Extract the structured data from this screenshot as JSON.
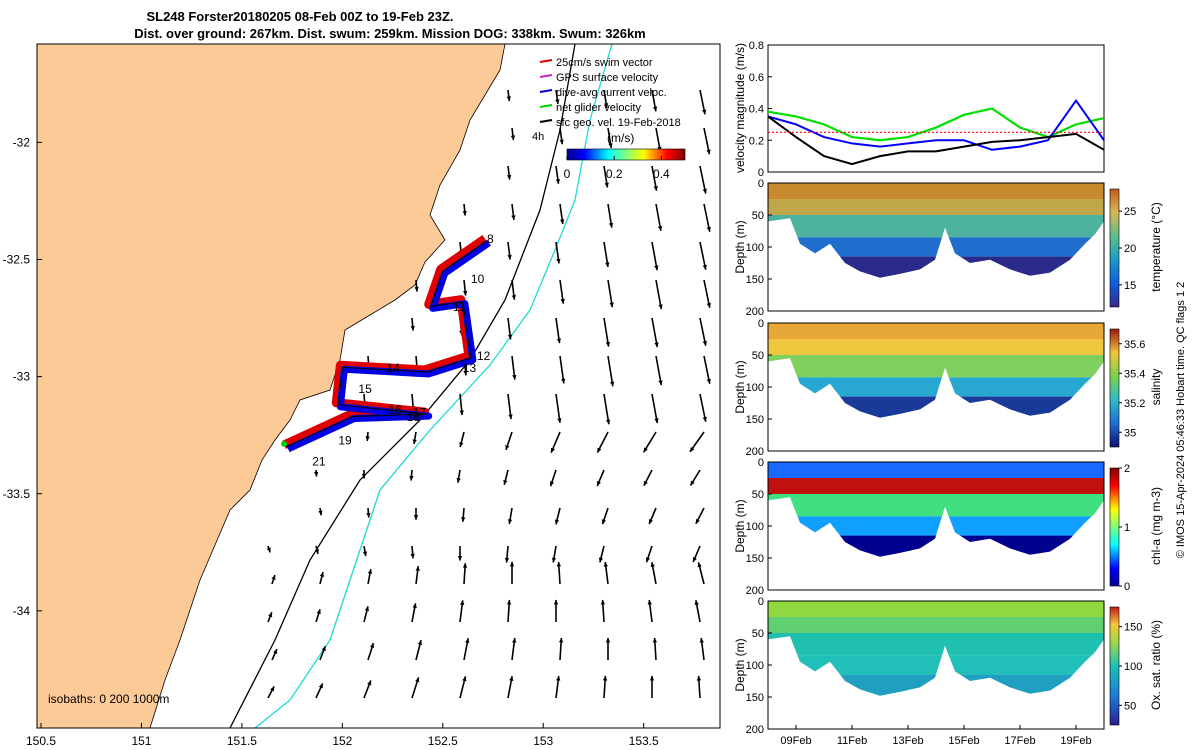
{
  "chart_data": [
    {
      "type": "scatter",
      "panel": "map",
      "title_line1": "SL248 Forster20180205 08-Feb 00Z to 19-Feb 23Z.",
      "title_line2": "Dist. over ground: 267km. Dist. swum: 259km. Mission DOG: 338km. Swum: 326km",
      "x_ticks": [
        "150.5",
        "151",
        "151.5",
        "152",
        "152.5",
        "153",
        "153.5"
      ],
      "x_tick_values": [
        150.5,
        151,
        151.5,
        152,
        152.5,
        153,
        153.5
      ],
      "y_ticks": [
        "-32",
        "-32.5",
        "-33",
        "-33.5",
        "-34"
      ],
      "y_tick_values": [
        -32,
        -32.5,
        -33,
        -33.5,
        -34
      ],
      "xlim": [
        150.48,
        153.88
      ],
      "ylim": [
        -34.5,
        -31.58
      ],
      "legend": [
        {
          "label": "25cm/s swim vector",
          "color": "#e00000"
        },
        {
          "label": "GPS surface velocity",
          "color": "#d020d0"
        },
        {
          "label": "dive-avg current veloc.",
          "color": "#0000e0"
        },
        {
          "label": "net glider velocity",
          "color": "#00d000"
        },
        {
          "label": "sfc geo. vel. 19-Feb-2018",
          "color": "#000000"
        }
      ],
      "legend_time_label": "4h",
      "colorbar": {
        "label": "(m/s)",
        "ticks": [
          "0",
          "0.2",
          "0.4"
        ],
        "tick_values": [
          0,
          0.2,
          0.4
        ],
        "range": [
          0,
          0.5
        ]
      },
      "isobaths_label": "isobaths: 0   200  1000m",
      "glider_track": {
        "lon": [
          152.72,
          152.5,
          152.44,
          152.6,
          152.64,
          152.42,
          152.0,
          151.98,
          152.42,
          152.05,
          151.72
        ],
        "lat": [
          -32.42,
          -32.55,
          -32.7,
          -32.68,
          -32.92,
          -32.98,
          -32.96,
          -33.12,
          -33.16,
          -33.17,
          -33.3
        ]
      },
      "day_labels": [
        {
          "text": "8",
          "lon": 152.72,
          "lat": -32.43
        },
        {
          "text": "10",
          "lon": 152.64,
          "lat": -32.6
        },
        {
          "text": "11",
          "lon": 152.55,
          "lat": -32.72
        },
        {
          "text": "12",
          "lon": 152.67,
          "lat": -32.93
        },
        {
          "text": "13",
          "lon": 152.6,
          "lat": -32.98
        },
        {
          "text": "14",
          "lon": 152.22,
          "lat": -32.98
        },
        {
          "text": "15",
          "lon": 152.08,
          "lat": -33.07
        },
        {
          "text": "16",
          "lon": 152.23,
          "lat": -33.16
        },
        {
          "text": "17",
          "lon": 152.35,
          "lat": -33.17
        },
        {
          "text": "18",
          "lon": 152.32,
          "lat": -33.19
        },
        {
          "text": "19",
          "lon": 151.98,
          "lat": -33.29
        },
        {
          "text": "21",
          "lon": 151.85,
          "lat": -33.38
        }
      ]
    },
    {
      "type": "line",
      "panel": "velocity",
      "ylabel": "velocity magnitude (m/s)",
      "ylim": [
        0,
        0.8
      ],
      "y_ticks": [
        "0",
        "0.2",
        "0.4",
        "0.6",
        "0.8"
      ],
      "y_tick_values": [
        0,
        0.2,
        0.4,
        0.6,
        0.8
      ],
      "x_days": [
        8,
        9,
        10,
        11,
        12,
        13,
        14,
        15,
        16,
        17,
        18,
        19,
        20
      ],
      "series": [
        {
          "color": "#00e000",
          "values": [
            0.38,
            0.35,
            0.3,
            0.22,
            0.2,
            0.22,
            0.28,
            0.36,
            0.4,
            0.28,
            0.22,
            0.3,
            0.34
          ]
        },
        {
          "color": "#0000ff",
          "values": [
            0.35,
            0.3,
            0.22,
            0.18,
            0.16,
            0.18,
            0.2,
            0.2,
            0.14,
            0.16,
            0.2,
            0.45,
            0.2
          ]
        },
        {
          "color": "#000000",
          "values": [
            0.35,
            0.22,
            0.1,
            0.05,
            0.1,
            0.13,
            0.13,
            0.16,
            0.19,
            0.2,
            0.22,
            0.24,
            0.14
          ]
        },
        {
          "color": "#ff0000",
          "values": [
            0.25,
            0.25,
            0.25,
            0.25,
            0.25,
            0.25,
            0.25,
            0.25,
            0.25,
            0.25,
            0.25,
            0.25,
            0.25
          ]
        }
      ]
    },
    {
      "type": "heatmap",
      "panel": "temperature",
      "ylabel": "Depth (m)",
      "cbar_label": "temperature (°C)",
      "y_ticks": [
        "0",
        "50",
        "100",
        "150",
        "200"
      ],
      "y_tick_values": [
        0,
        50,
        100,
        150,
        200
      ],
      "cbar_ticks": [
        "15",
        "20",
        "25"
      ],
      "cbar_tick_values": [
        15,
        20,
        25
      ],
      "cbar_range": [
        12,
        28
      ],
      "colormap": "parula"
    },
    {
      "type": "heatmap",
      "panel": "salinity",
      "ylabel": "Depth (m)",
      "cbar_label": "salinity",
      "y_ticks": [
        "0",
        "50",
        "100",
        "150",
        "200"
      ],
      "y_tick_values": [
        0,
        50,
        100,
        150,
        200
      ],
      "cbar_ticks": [
        "35",
        "35.2",
        "35.4",
        "35.6"
      ],
      "cbar_tick_values": [
        35,
        35.2,
        35.4,
        35.6
      ],
      "cbar_range": [
        34.9,
        35.7
      ],
      "colormap": "parula"
    },
    {
      "type": "heatmap",
      "panel": "chl",
      "ylabel": "Depth (m)",
      "cbar_label": "chl-a (mg m-3)",
      "y_ticks": [
        "0",
        "50",
        "100",
        "150",
        "200"
      ],
      "y_tick_values": [
        0,
        50,
        100,
        150,
        200
      ],
      "cbar_ticks": [
        "0",
        "1",
        "2"
      ],
      "cbar_tick_values": [
        0,
        1,
        2
      ],
      "cbar_range": [
        0,
        2
      ],
      "colormap": "jet"
    },
    {
      "type": "heatmap",
      "panel": "oxygen",
      "ylabel": "Depth (m)",
      "cbar_label": "Ox. sat. ratio (%)",
      "y_ticks": [
        "0",
        "50",
        "100",
        "150",
        "200"
      ],
      "y_tick_values": [
        0,
        50,
        100,
        150,
        200
      ],
      "cbar_ticks": [
        "50",
        "100",
        "150"
      ],
      "cbar_tick_values": [
        50,
        100,
        150
      ],
      "cbar_range": [
        25,
        175
      ],
      "colormap": "parula",
      "x_ticks": [
        "09Feb",
        "11Feb",
        "13Feb",
        "15Feb",
        "17Feb",
        "19Feb"
      ],
      "x_tick_days": [
        9,
        11,
        13,
        15,
        17,
        19
      ]
    }
  ],
  "footer": "© IMOS 15-Apr-2024 05:46:33 Hobart time. QC flags 1  2"
}
